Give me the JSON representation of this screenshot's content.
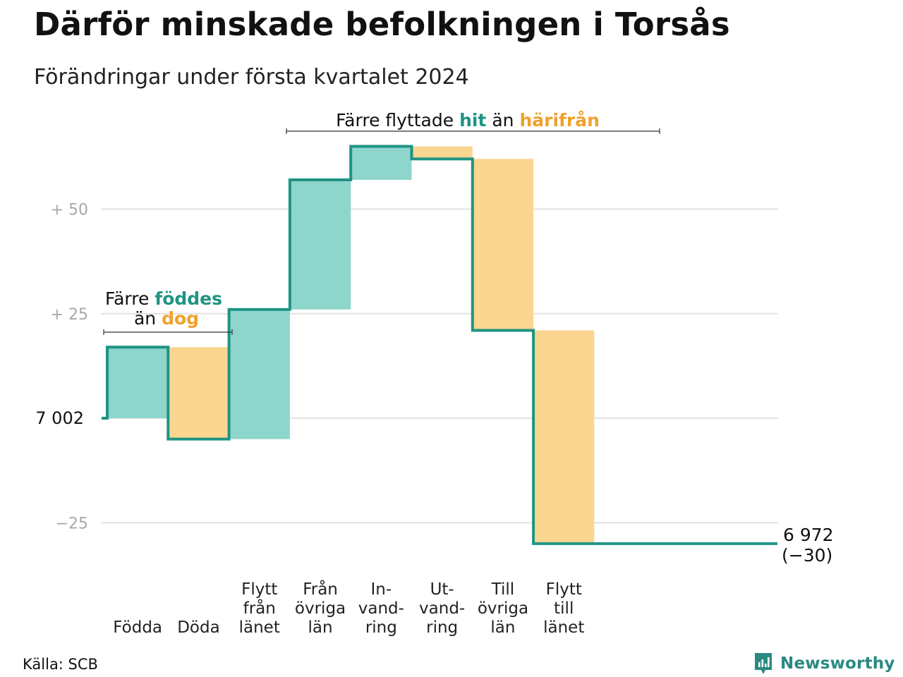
{
  "title": "Därför minskade befolkningen i Torsås",
  "subtitle": "Förändringar under första kvartalet 2024",
  "source": "Källa: SCB",
  "brand": "Newsworthy",
  "colors": {
    "increase": "#8ed5cb",
    "decrease": "#fbd690",
    "line": "#1f9484",
    "teal_text": "#1f9484",
    "orange_text": "#f0a12d",
    "grid": "#e2e2e2",
    "tick": "#a8a8a8"
  },
  "chart_data": {
    "type": "bar",
    "subtype": "waterfall",
    "start_value": 7002,
    "end_value": 6972,
    "end_label": "6 972",
    "end_change_label": "(−30)",
    "y_axis": {
      "ylim": [
        -30,
        65
      ],
      "ticks": [
        {
          "value": 50,
          "label": "+ 50"
        },
        {
          "value": 25,
          "label": "+ 25"
        },
        {
          "value": 0,
          "label": "7 002"
        },
        {
          "value": -25,
          "label": "−25"
        }
      ],
      "grid": true
    },
    "steps": [
      {
        "label": [
          "Födda"
        ],
        "value": 17
      },
      {
        "label": [
          "Döda"
        ],
        "value": -22
      },
      {
        "label": [
          "Flytt",
          "från",
          "länet"
        ],
        "value": 31
      },
      {
        "label": [
          "Från",
          "övriga",
          "län"
        ],
        "value": 31
      },
      {
        "label": [
          "In-",
          "vand-",
          "ring"
        ],
        "value": 8
      },
      {
        "label": [
          "Ut-",
          "vand-",
          "ring"
        ],
        "value": -3
      },
      {
        "label": [
          "Till",
          "övriga",
          "län"
        ],
        "value": -41
      },
      {
        "label": [
          "Flytt",
          "till",
          "länet"
        ],
        "value": -51
      }
    ],
    "annotations": [
      {
        "text": [
          "Färre ",
          "föddes"
        ],
        "colors": [
          "default",
          "teal"
        ],
        "line2": [
          "än ",
          "dog"
        ],
        "line2_colors": [
          "default",
          "orange"
        ],
        "span": [
          0,
          1
        ]
      },
      {
        "text": [
          "Färre flyttade ",
          "hit",
          " än ",
          "härifrån"
        ],
        "colors": [
          "default",
          "teal",
          "default",
          "orange"
        ],
        "span": [
          2,
          7
        ]
      }
    ]
  }
}
